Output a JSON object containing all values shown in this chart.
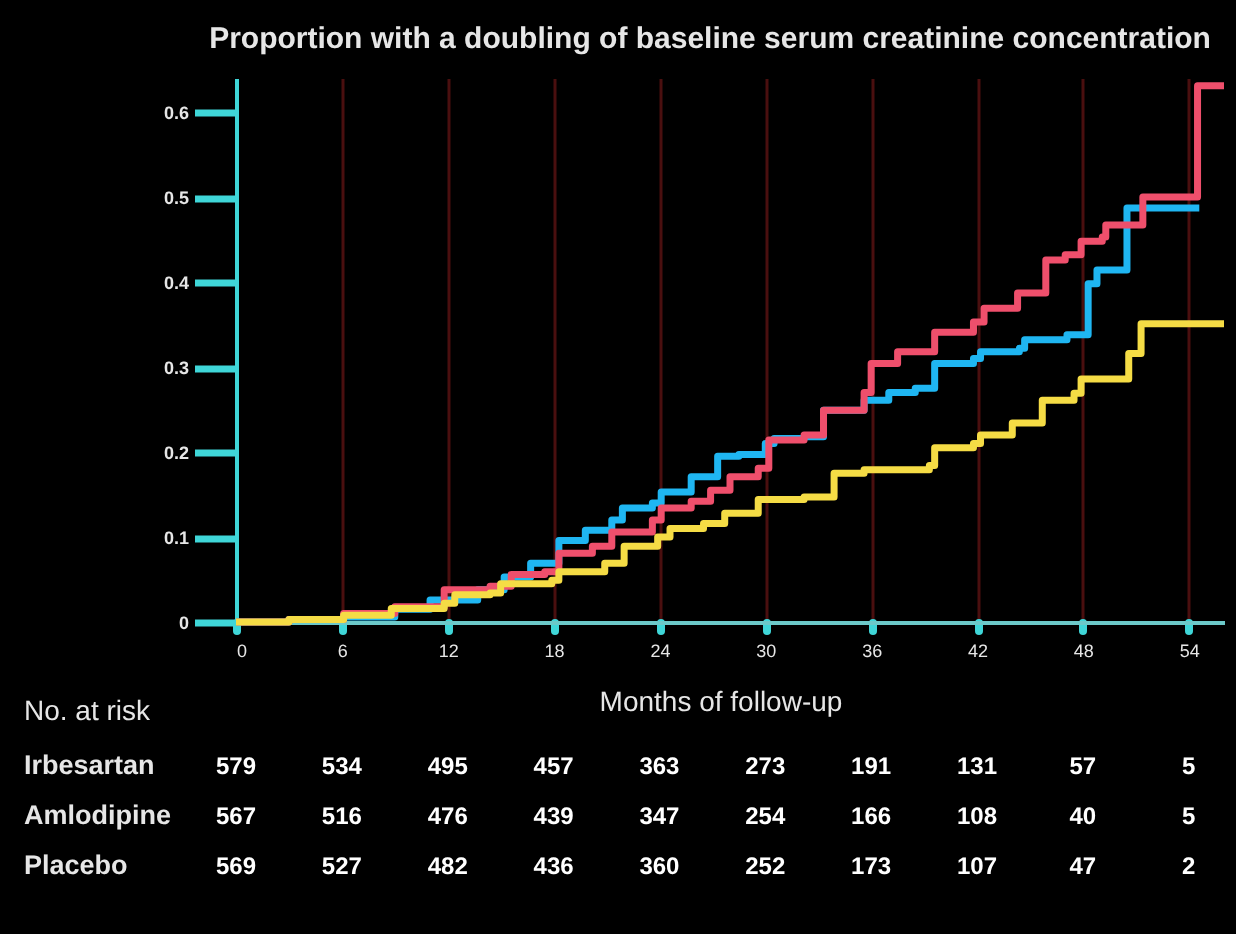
{
  "chart_data": {
    "type": "step",
    "title": "Proportion with a doubling of baseline serum creatinine concentration",
    "xlabel": "Months of follow-up",
    "xlim": [
      0,
      56
    ],
    "xticks": [
      0,
      6,
      12,
      18,
      24,
      30,
      36,
      42,
      48,
      54
    ],
    "ylim": [
      0,
      0.64
    ],
    "yticks": [
      0,
      0.1,
      0.2,
      0.3,
      0.4,
      0.5,
      0.6
    ],
    "grid": "x",
    "series": [
      {
        "color": "#1fb6f2",
        "x": [
          0,
          3,
          6.1,
          9,
          11,
          13.7,
          15.2,
          16.7,
          18.3,
          19.8,
          21.3,
          21.9,
          23.6,
          24.1,
          25.8,
          27.3,
          28.5,
          30,
          30.5,
          32.2,
          33.3,
          35.6,
          37,
          38.5,
          39.6,
          41.8,
          42.2,
          44.4,
          44.7,
          47.1,
          48.3,
          48.8,
          50.5,
          54.6
        ],
        "values": [
          0,
          0.003,
          0.006,
          0.015,
          0.026,
          0.038,
          0.053,
          0.069,
          0.096,
          0.108,
          0.12,
          0.134,
          0.14,
          0.153,
          0.171,
          0.195,
          0.197,
          0.21,
          0.216,
          0.218,
          0.249,
          0.261,
          0.27,
          0.275,
          0.304,
          0.31,
          0.318,
          0.322,
          0.332,
          0.338,
          0.398,
          0.414,
          0.487,
          0.487
        ]
      },
      {
        "color": "#ef4f6c",
        "x": [
          0,
          3,
          6.1,
          9,
          11.8,
          14.4,
          15.6,
          17.5,
          18.3,
          20.2,
          21.3,
          23.6,
          24.1,
          25.8,
          26.9,
          28,
          29.6,
          30.2,
          32.2,
          33.3,
          35.6,
          36,
          37.5,
          39.6,
          41.8,
          42.4,
          44.3,
          45.9,
          47,
          47.9,
          49.1,
          49.3,
          51.4,
          54.5,
          56
        ],
        "values": [
          0,
          0.003,
          0.01,
          0.018,
          0.038,
          0.042,
          0.056,
          0.059,
          0.081,
          0.089,
          0.106,
          0.12,
          0.134,
          0.142,
          0.155,
          0.171,
          0.181,
          0.214,
          0.22,
          0.249,
          0.27,
          0.304,
          0.318,
          0.341,
          0.353,
          0.369,
          0.387,
          0.426,
          0.432,
          0.448,
          0.453,
          0.467,
          0.5,
          0.631,
          0.631
        ]
      },
      {
        "color": "#f5dc45",
        "x": [
          0,
          3,
          6.1,
          8.8,
          11.8,
          12.4,
          14.4,
          15,
          17.9,
          18.3,
          20.9,
          22,
          23.9,
          24.6,
          26.5,
          27.7,
          29.6,
          32.2,
          33.9,
          35.6,
          39.3,
          39.6,
          41.8,
          42.2,
          44,
          45.7,
          47.5,
          47.9,
          50.6,
          51.3,
          56
        ],
        "values": [
          0,
          0.003,
          0.008,
          0.016,
          0.022,
          0.032,
          0.034,
          0.045,
          0.049,
          0.059,
          0.069,
          0.089,
          0.1,
          0.11,
          0.116,
          0.128,
          0.144,
          0.147,
          0.175,
          0.179,
          0.184,
          0.205,
          0.21,
          0.22,
          0.234,
          0.261,
          0.269,
          0.286,
          0.316,
          0.351,
          0.351
        ]
      }
    ],
    "annotations": [
      "No. at risk",
      "Irbesartan",
      "579",
      "534",
      "495",
      "457",
      "363",
      "273",
      "191",
      "131",
      "57",
      "5",
      "Amlodipine",
      "567",
      "516",
      "476",
      "439",
      "347",
      "254",
      "166",
      "108",
      "40",
      "5",
      "Placebo",
      "569",
      "527",
      "482",
      "436",
      "360",
      "252",
      "173",
      "107",
      "47",
      "2"
    ]
  }
}
